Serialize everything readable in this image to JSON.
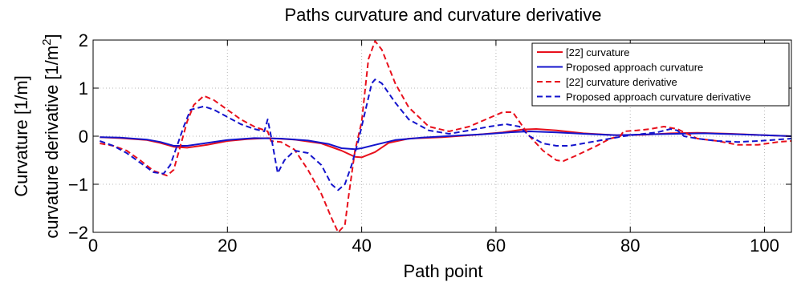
{
  "chart_data": {
    "type": "line",
    "title": "Paths curvature and curvature derivative",
    "xlabel": "Path point",
    "ylabel_lines": [
      "Curvature [1/m]",
      "curvature derivative [1/m",
      "2",
      "]"
    ],
    "xlim": [
      0,
      104
    ],
    "ylim": [
      -2,
      2
    ],
    "xticks": [
      0,
      20,
      40,
      60,
      80,
      100
    ],
    "yticks": [
      -2,
      -1,
      0,
      1,
      2
    ],
    "xtick_labels": [
      "0",
      "20",
      "40",
      "60",
      "80",
      "100"
    ],
    "ytick_labels": [
      "−2",
      "−1",
      "0",
      "1",
      "2"
    ],
    "grid": true,
    "legend_position": "top-right",
    "series": [
      {
        "name": "[22] curvature",
        "color": "#e8101c",
        "dash": "solid",
        "points": [
          [
            1,
            -0.02
          ],
          [
            4,
            -0.04
          ],
          [
            8,
            -0.08
          ],
          [
            10,
            -0.14
          ],
          [
            12,
            -0.22
          ],
          [
            14,
            -0.24
          ],
          [
            17,
            -0.18
          ],
          [
            20,
            -0.1
          ],
          [
            23,
            -0.06
          ],
          [
            26,
            -0.04
          ],
          [
            30,
            -0.07
          ],
          [
            34,
            -0.15
          ],
          [
            37,
            -0.3
          ],
          [
            39,
            -0.43
          ],
          [
            40,
            -0.44
          ],
          [
            42,
            -0.33
          ],
          [
            44,
            -0.14
          ],
          [
            47,
            -0.05
          ],
          [
            52,
            -0.02
          ],
          [
            57,
            0.03
          ],
          [
            61,
            0.08
          ],
          [
            64,
            0.14
          ],
          [
            66,
            0.15
          ],
          [
            69,
            0.12
          ],
          [
            73,
            0.06
          ],
          [
            78,
            0.02
          ],
          [
            82,
            0.03
          ],
          [
            86,
            0.06
          ],
          [
            90,
            0.07
          ],
          [
            95,
            0.05
          ],
          [
            100,
            0.02
          ],
          [
            104,
            0.0
          ]
        ]
      },
      {
        "name": "Proposed approach curvature",
        "color": "#1414cc",
        "dash": "solid",
        "points": [
          [
            1,
            -0.02
          ],
          [
            4,
            -0.03
          ],
          [
            8,
            -0.07
          ],
          [
            10,
            -0.12
          ],
          [
            12,
            -0.2
          ],
          [
            14,
            -0.2
          ],
          [
            17,
            -0.14
          ],
          [
            20,
            -0.08
          ],
          [
            24,
            -0.04
          ],
          [
            28,
            -0.05
          ],
          [
            32,
            -0.09
          ],
          [
            35,
            -0.16
          ],
          [
            37,
            -0.25
          ],
          [
            39,
            -0.27
          ],
          [
            40,
            -0.25
          ],
          [
            42,
            -0.18
          ],
          [
            45,
            -0.08
          ],
          [
            49,
            -0.03
          ],
          [
            54,
            0.01
          ],
          [
            58,
            0.04
          ],
          [
            62,
            0.08
          ],
          [
            65,
            0.1
          ],
          [
            69,
            0.08
          ],
          [
            73,
            0.05
          ],
          [
            78,
            0.02
          ],
          [
            83,
            0.04
          ],
          [
            87,
            0.05
          ],
          [
            91,
            0.06
          ],
          [
            96,
            0.04
          ],
          [
            100,
            0.02
          ],
          [
            104,
            0.0
          ]
        ]
      },
      {
        "name": "[22] curvature derivative",
        "color": "#e8101c",
        "dash": "dashed",
        "points": [
          [
            1,
            -0.15
          ],
          [
            3,
            -0.2
          ],
          [
            5,
            -0.3
          ],
          [
            7,
            -0.5
          ],
          [
            9,
            -0.72
          ],
          [
            11,
            -0.82
          ],
          [
            12,
            -0.7
          ],
          [
            13,
            -0.2
          ],
          [
            14,
            0.3
          ],
          [
            15,
            0.65
          ],
          [
            16.5,
            0.84
          ],
          [
            18,
            0.75
          ],
          [
            20,
            0.55
          ],
          [
            22,
            0.35
          ],
          [
            24,
            0.2
          ],
          [
            26,
            0.1
          ],
          [
            26.5,
            -0.1
          ],
          [
            28,
            -0.12
          ],
          [
            30,
            -0.28
          ],
          [
            32,
            -0.7
          ],
          [
            34,
            -1.2
          ],
          [
            35.5,
            -1.7
          ],
          [
            36.5,
            -2.0
          ],
          [
            37.5,
            -1.85
          ],
          [
            38,
            -1.3
          ],
          [
            39,
            -0.3
          ],
          [
            40,
            0.3
          ],
          [
            41,
            1.6
          ],
          [
            42,
            1.98
          ],
          [
            43,
            1.8
          ],
          [
            45,
            1.1
          ],
          [
            47,
            0.6
          ],
          [
            50,
            0.2
          ],
          [
            53,
            0.1
          ],
          [
            56,
            0.2
          ],
          [
            59,
            0.38
          ],
          [
            61,
            0.5
          ],
          [
            62.5,
            0.5
          ],
          [
            63.5,
            0.3
          ],
          [
            65,
            0.0
          ],
          [
            67,
            -0.3
          ],
          [
            69,
            -0.5
          ],
          [
            70,
            -0.52
          ],
          [
            72,
            -0.4
          ],
          [
            75,
            -0.2
          ],
          [
            77,
            -0.05
          ],
          [
            78.5,
            0.0
          ],
          [
            79,
            0.1
          ],
          [
            81,
            0.12
          ],
          [
            83,
            0.15
          ],
          [
            85,
            0.2
          ],
          [
            87,
            0.15
          ],
          [
            88.5,
            0.05
          ],
          [
            90,
            -0.05
          ],
          [
            93,
            -0.1
          ],
          [
            96,
            -0.18
          ],
          [
            99,
            -0.18
          ],
          [
            102,
            -0.12
          ],
          [
            104,
            -0.1
          ]
        ]
      },
      {
        "name": "Proposed approach curvature derivative",
        "color": "#1414cc",
        "dash": "dashed",
        "points": [
          [
            1,
            -0.1
          ],
          [
            3,
            -0.2
          ],
          [
            5,
            -0.35
          ],
          [
            7,
            -0.55
          ],
          [
            9,
            -0.75
          ],
          [
            10.5,
            -0.78
          ],
          [
            11.5,
            -0.6
          ],
          [
            12.5,
            -0.2
          ],
          [
            13.5,
            0.2
          ],
          [
            14.5,
            0.55
          ],
          [
            16.5,
            0.62
          ],
          [
            18,
            0.55
          ],
          [
            20,
            0.4
          ],
          [
            22,
            0.25
          ],
          [
            24,
            0.15
          ],
          [
            25.5,
            0.1
          ],
          [
            26,
            0.35
          ],
          [
            26.5,
            0.0
          ],
          [
            27.5,
            -0.77
          ],
          [
            28.5,
            -0.5
          ],
          [
            30,
            -0.3
          ],
          [
            32,
            -0.35
          ],
          [
            34,
            -0.6
          ],
          [
            35.5,
            -1.0
          ],
          [
            36.5,
            -1.12
          ],
          [
            37.5,
            -1.0
          ],
          [
            38.5,
            -0.6
          ],
          [
            39.5,
            -0.1
          ],
          [
            40.5,
            0.5
          ],
          [
            41.5,
            1.1
          ],
          [
            42,
            1.18
          ],
          [
            43,
            1.1
          ],
          [
            45,
            0.7
          ],
          [
            47,
            0.35
          ],
          [
            50,
            0.12
          ],
          [
            53,
            0.05
          ],
          [
            56,
            0.12
          ],
          [
            59,
            0.2
          ],
          [
            61.5,
            0.25
          ],
          [
            63.5,
            0.2
          ],
          [
            65,
            0.0
          ],
          [
            67,
            -0.15
          ],
          [
            69,
            -0.2
          ],
          [
            71,
            -0.2
          ],
          [
            73,
            -0.15
          ],
          [
            75,
            -0.1
          ],
          [
            77,
            -0.05
          ],
          [
            79,
            0.0
          ],
          [
            82,
            0.05
          ],
          [
            84,
            0.08
          ],
          [
            86,
            0.15
          ],
          [
            87,
            0.12
          ],
          [
            88,
            0.0
          ],
          [
            90,
            -0.05
          ],
          [
            93,
            -0.1
          ],
          [
            96,
            -0.12
          ],
          [
            99,
            -0.1
          ],
          [
            102,
            -0.07
          ],
          [
            104,
            -0.05
          ]
        ]
      }
    ]
  }
}
